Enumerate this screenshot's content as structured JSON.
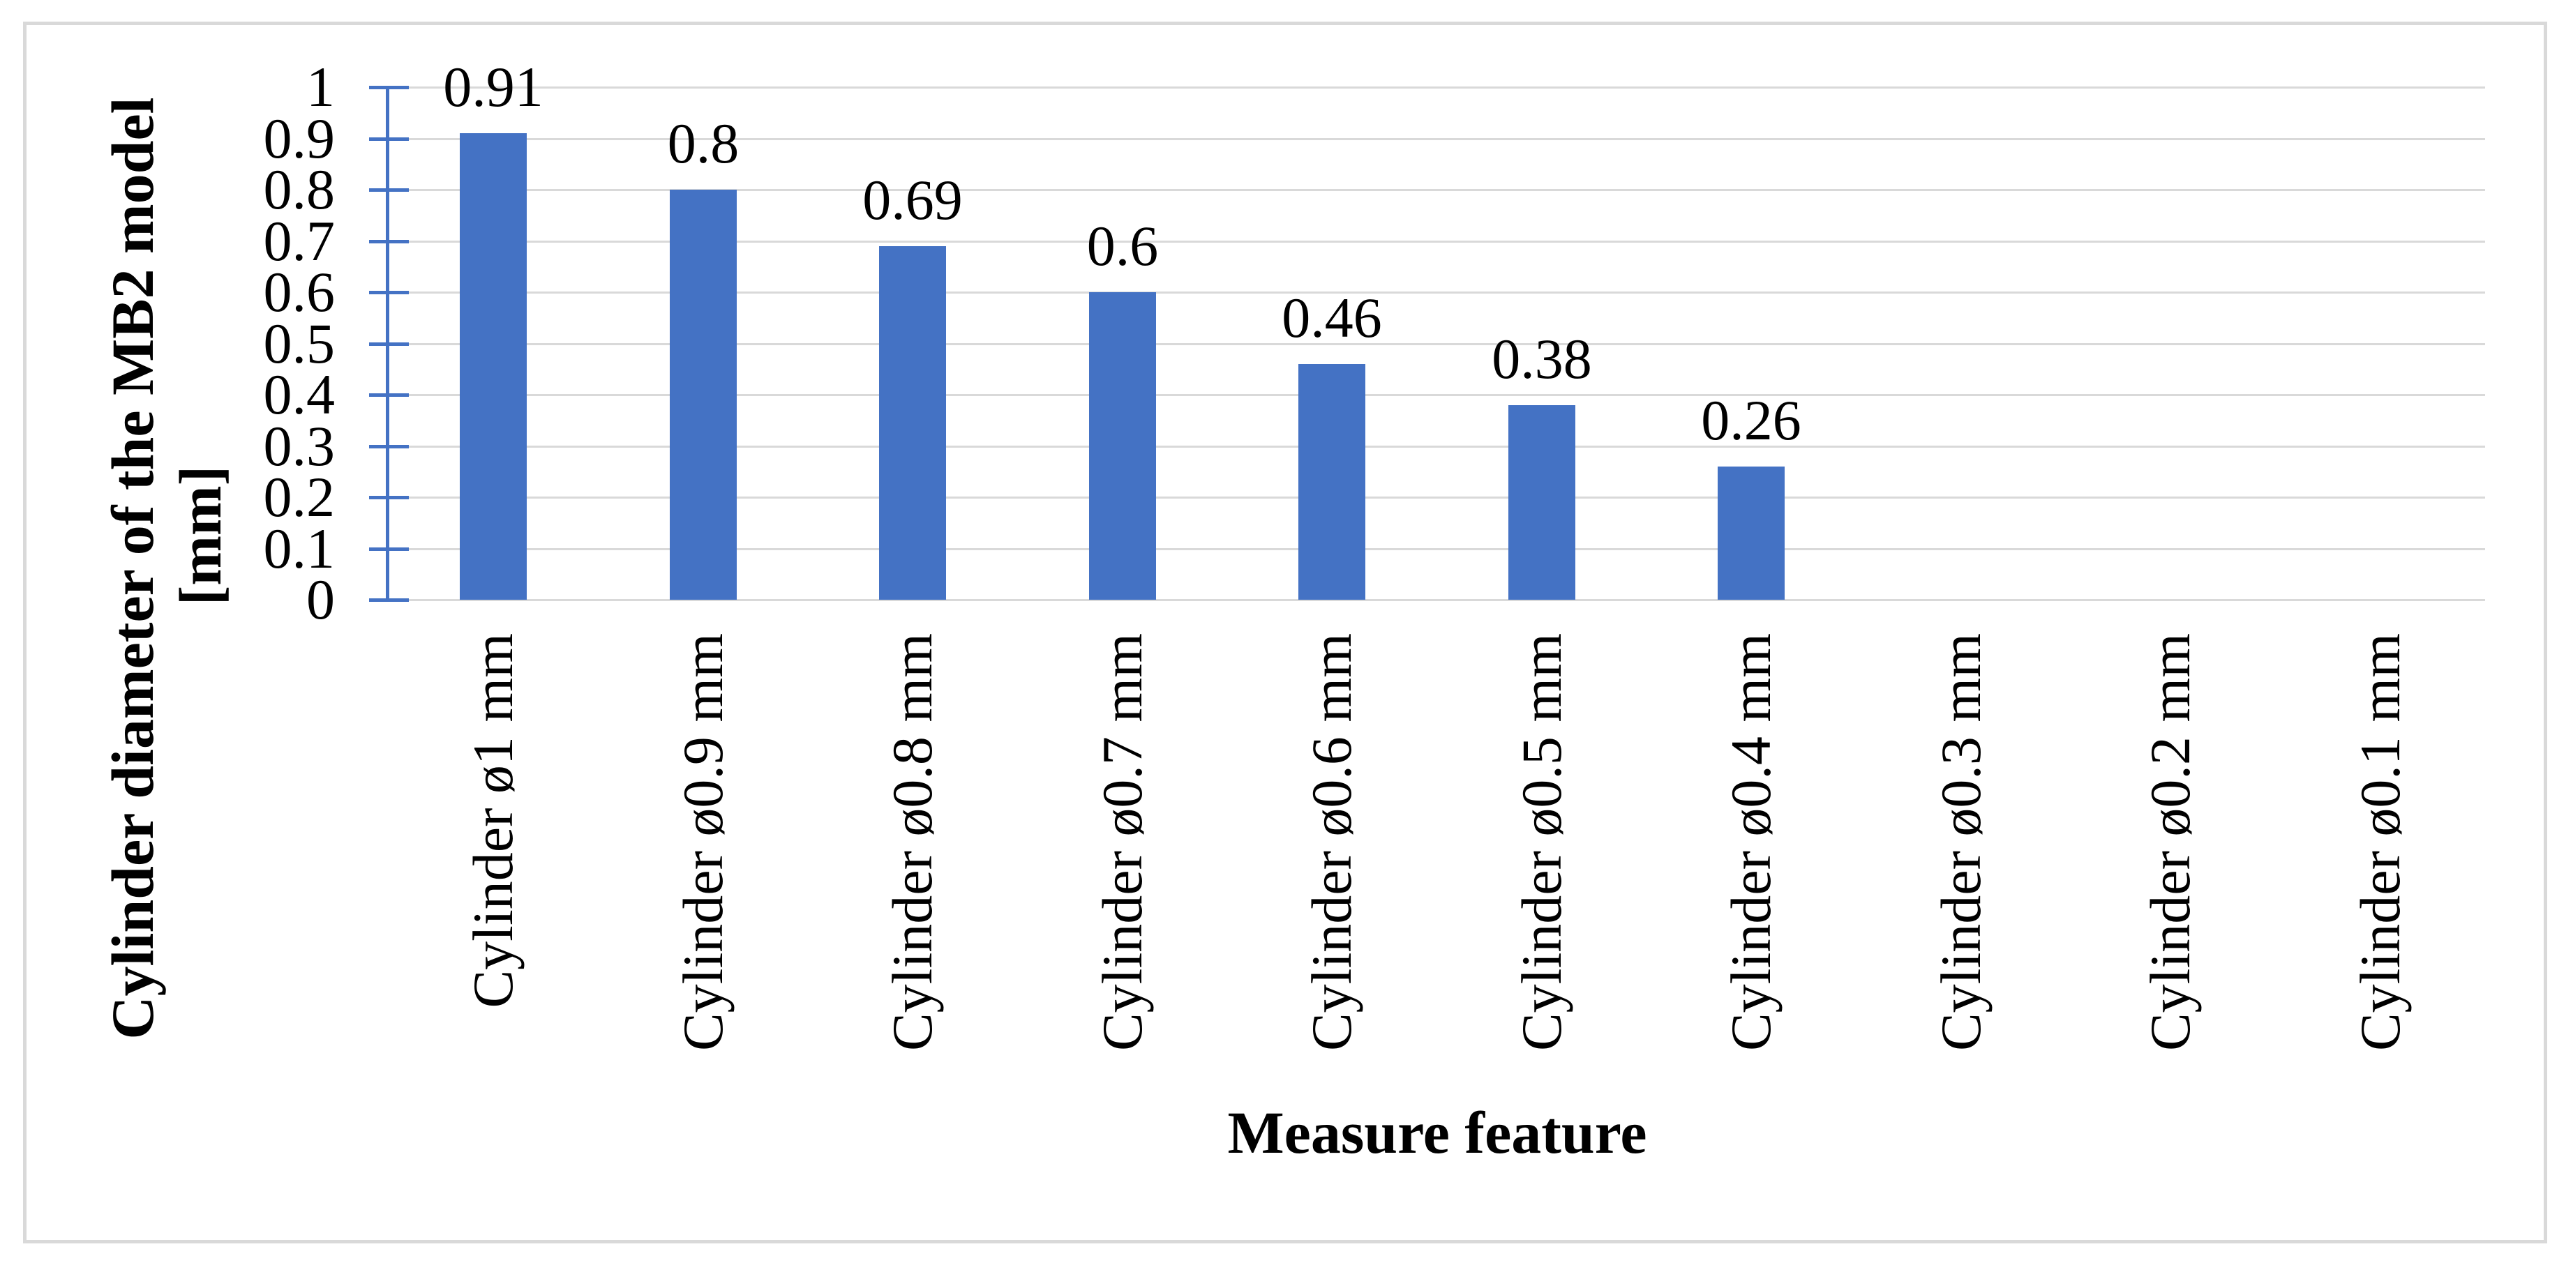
{
  "chart_data": {
    "type": "bar",
    "title": "",
    "categories": [
      "Cylinder ø1 mm",
      "Cylinder ø0.9 mm",
      "Cylinder ø0.8 mm",
      "Cylinder ø0.7 mm",
      "Cylinder ø0.6 mm",
      "Cylinder ø0.5 mm",
      "Cylinder ø0.4 mm",
      "Cylinder ø0.3 mm",
      "Cylinder ø0.2 mm",
      "Cylinder ø0.1 mm"
    ],
    "values": [
      0.91,
      0.8,
      0.69,
      0.6,
      0.46,
      0.38,
      0.26,
      0,
      0,
      0
    ],
    "data_labels": [
      "0.91",
      "0.8",
      "0.69",
      "0.6",
      "0.46",
      "0.38",
      "0.26",
      "",
      "",
      ""
    ],
    "xlabel": "Measure feature",
    "ylabel_line1": "Cylinder diameter of the MB2 model",
    "ylabel_line2": "[mm]",
    "y_tick_labels": [
      "1",
      "0.9",
      "0.8",
      "0.7",
      "0.6",
      "0.5",
      "0.4",
      "0.3",
      "0.2",
      "0.1",
      "0"
    ],
    "ylim": [
      0,
      1
    ],
    "y_tick_step": 0.1,
    "grid": true,
    "legend": "none",
    "colors": {
      "bar": "#4472C4",
      "axis": "#4472C4",
      "gridline": "#D9D9D9",
      "frame_border": "#D9D9D9",
      "text": "#000000"
    }
  }
}
